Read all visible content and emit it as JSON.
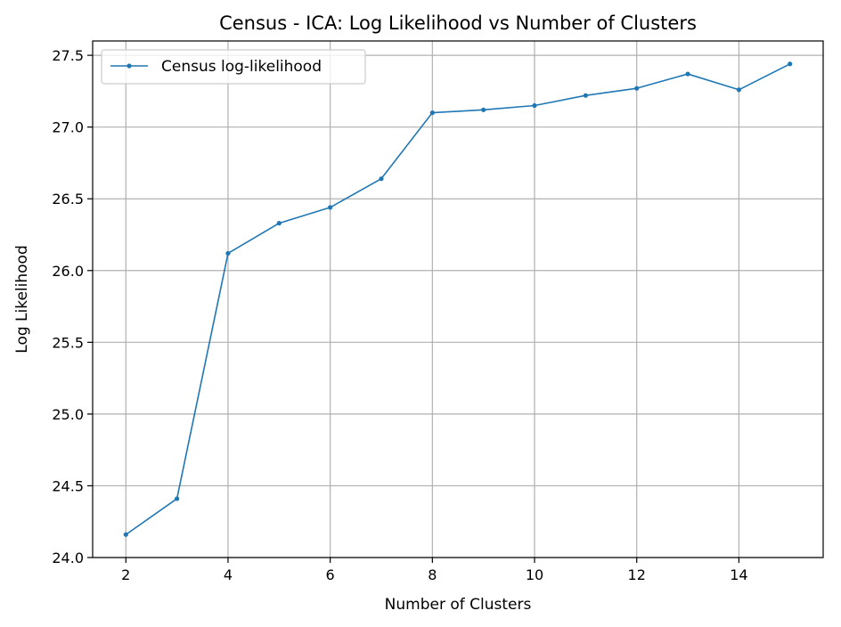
{
  "chart_data": {
    "type": "line",
    "title": "Census - ICA: Log Likelihood vs Number of Clusters",
    "xlabel": "Number of Clusters",
    "ylabel": "Log Likelihood",
    "xlim": [
      1.35,
      15.65
    ],
    "ylim": [
      24.0,
      27.6
    ],
    "xticks": [
      2,
      4,
      6,
      8,
      10,
      12,
      14
    ],
    "yticks": [
      24.0,
      24.5,
      25.0,
      25.5,
      26.0,
      26.5,
      27.0,
      27.5
    ],
    "xtick_labels": [
      "2",
      "4",
      "6",
      "8",
      "10",
      "12",
      "14"
    ],
    "ytick_labels": [
      "24.0",
      "24.5",
      "25.0",
      "25.5",
      "26.0",
      "26.5",
      "27.0",
      "27.5"
    ],
    "grid": true,
    "legend_position": "top-left",
    "series": [
      {
        "name": "Census log-likelihood",
        "color": "#1f77b4",
        "x": [
          2,
          3,
          4,
          5,
          6,
          7,
          8,
          9,
          10,
          11,
          12,
          13,
          14,
          15
        ],
        "y": [
          24.16,
          24.41,
          26.12,
          26.33,
          26.44,
          26.64,
          27.1,
          27.12,
          27.15,
          27.22,
          27.27,
          27.37,
          27.26,
          27.44
        ]
      }
    ]
  }
}
